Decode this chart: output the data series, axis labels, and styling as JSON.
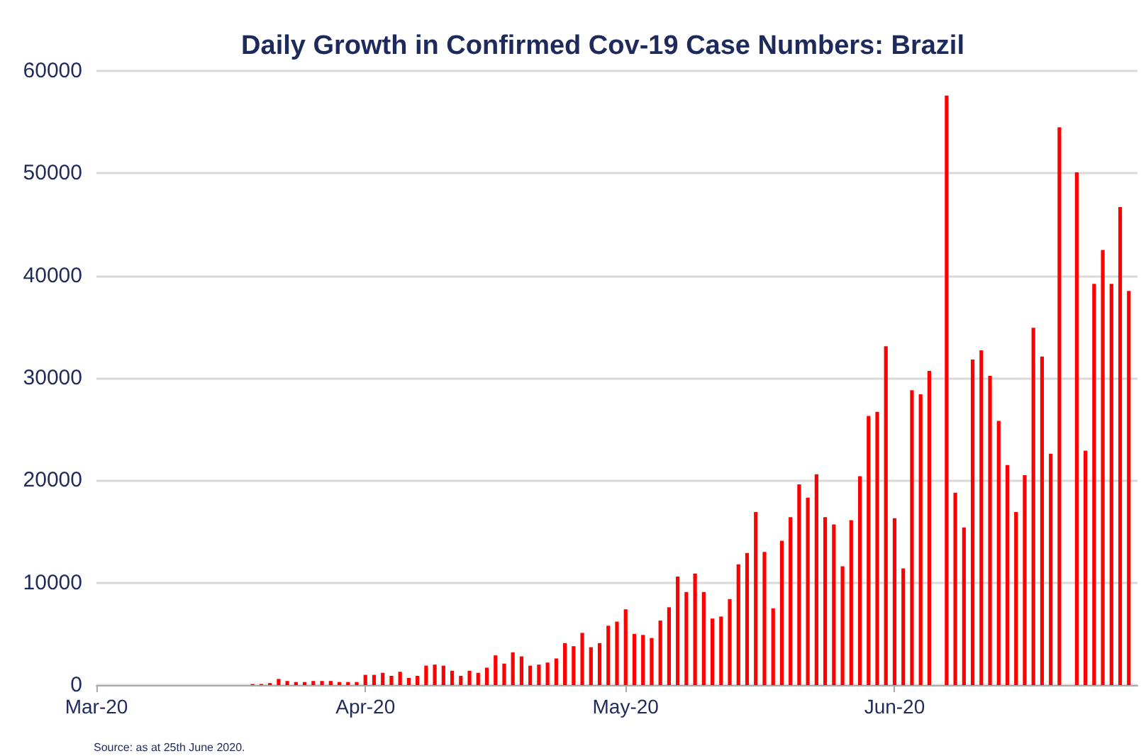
{
  "chart_data": {
    "type": "bar",
    "title": "Daily Growth in Confirmed Cov-19 Case Numbers: Brazil",
    "annotations": [
      "Source: as at 25th June 2020."
    ],
    "x": [
      "2020-03-01",
      "2020-03-02",
      "2020-03-03",
      "2020-03-04",
      "2020-03-05",
      "2020-03-06",
      "2020-03-07",
      "2020-03-08",
      "2020-03-09",
      "2020-03-10",
      "2020-03-11",
      "2020-03-12",
      "2020-03-13",
      "2020-03-14",
      "2020-03-15",
      "2020-03-16",
      "2020-03-17",
      "2020-03-18",
      "2020-03-19",
      "2020-03-20",
      "2020-03-21",
      "2020-03-22",
      "2020-03-23",
      "2020-03-24",
      "2020-03-25",
      "2020-03-26",
      "2020-03-27",
      "2020-03-28",
      "2020-03-29",
      "2020-03-30",
      "2020-03-31",
      "2020-04-01",
      "2020-04-02",
      "2020-04-03",
      "2020-04-04",
      "2020-04-05",
      "2020-04-06",
      "2020-04-07",
      "2020-04-08",
      "2020-04-09",
      "2020-04-10",
      "2020-04-11",
      "2020-04-12",
      "2020-04-13",
      "2020-04-14",
      "2020-04-15",
      "2020-04-16",
      "2020-04-17",
      "2020-04-18",
      "2020-04-19",
      "2020-04-20",
      "2020-04-21",
      "2020-04-22",
      "2020-04-23",
      "2020-04-24",
      "2020-04-25",
      "2020-04-26",
      "2020-04-27",
      "2020-04-28",
      "2020-04-29",
      "2020-04-30",
      "2020-05-01",
      "2020-05-02",
      "2020-05-03",
      "2020-05-04",
      "2020-05-05",
      "2020-05-06",
      "2020-05-07",
      "2020-05-08",
      "2020-05-09",
      "2020-05-10",
      "2020-05-11",
      "2020-05-12",
      "2020-05-13",
      "2020-05-14",
      "2020-05-15",
      "2020-05-16",
      "2020-05-17",
      "2020-05-18",
      "2020-05-19",
      "2020-05-20",
      "2020-05-21",
      "2020-05-22",
      "2020-05-23",
      "2020-05-24",
      "2020-05-25",
      "2020-05-26",
      "2020-05-27",
      "2020-05-28",
      "2020-05-29",
      "2020-05-30",
      "2020-05-31",
      "2020-06-01",
      "2020-06-02",
      "2020-06-03",
      "2020-06-04",
      "2020-06-05",
      "2020-06-06",
      "2020-06-07",
      "2020-06-08",
      "2020-06-09",
      "2020-06-10",
      "2020-06-11",
      "2020-06-12",
      "2020-06-13",
      "2020-06-14",
      "2020-06-15",
      "2020-06-16",
      "2020-06-17",
      "2020-06-18",
      "2020-06-19",
      "2020-06-20",
      "2020-06-21",
      "2020-06-22",
      "2020-06-23",
      "2020-06-24",
      "2020-06-25",
      "2020-06-26",
      "2020-06-27",
      "2020-06-28"
    ],
    "values": [
      0,
      0,
      0,
      0,
      0,
      0,
      0,
      0,
      0,
      0,
      0,
      0,
      0,
      0,
      0,
      0,
      0,
      0,
      100,
      100,
      200,
      600,
      400,
      300,
      300,
      400,
      400,
      400,
      300,
      300,
      300,
      1000,
      1000,
      1200,
      900,
      1300,
      700,
      900,
      1900,
      2000,
      1900,
      1400,
      900,
      1400,
      1200,
      1700,
      2900,
      2100,
      3200,
      2800,
      1900,
      2000,
      2200,
      2600,
      4100,
      3800,
      5100,
      3700,
      4100,
      5800,
      6200,
      7400,
      5000,
      4900,
      4600,
      6300,
      7600,
      10600,
      9100,
      10900,
      9100,
      6500,
      6700,
      8400,
      11800,
      12900,
      16900,
      13000,
      7500,
      14100,
      16400,
      19600,
      18300,
      20600,
      16400,
      15700,
      11600,
      16100,
      20400,
      26300,
      26700,
      33100,
      16300,
      11400,
      28800,
      28400,
      30700,
      null,
      57600,
      18800,
      15400,
      31800,
      32700,
      30200,
      25800,
      21500,
      16900,
      20500,
      34900,
      32100,
      22600,
      54500,
      null,
      50100,
      22900,
      39200,
      42500,
      39200,
      46700,
      38500
    ],
    "color": "#ff0000",
    "xlim": [
      "2020-03-01",
      "2020-06-29"
    ],
    "xticks": [
      {
        "value": "2020-03-01",
        "label": "Mar-20"
      },
      {
        "value": "2020-04-01",
        "label": "Apr-20"
      },
      {
        "value": "2020-05-01",
        "label": "May-20"
      },
      {
        "value": "2020-06-01",
        "label": "Jun-20"
      }
    ],
    "ylim": [
      0,
      60000
    ],
    "yticks": [
      0,
      10000,
      20000,
      30000,
      40000,
      50000,
      60000
    ],
    "grid": "y"
  }
}
